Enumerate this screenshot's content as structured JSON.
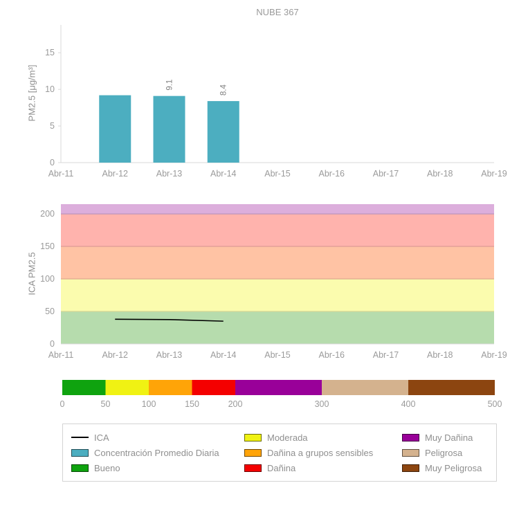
{
  "title": "NUBE 367",
  "chart_data": [
    {
      "type": "bar",
      "title": "NUBE 367",
      "xlabel": "",
      "ylabel": "PM2.5 [μg/m³]",
      "categories": [
        "Abr-11",
        "Abr-12",
        "Abr-13",
        "Abr-14",
        "Abr-15",
        "Abr-16",
        "Abr-17",
        "Abr-18",
        "Abr-19"
      ],
      "series": [
        {
          "name": "Concentración Promedio Diaria",
          "color": "#4caec0",
          "x": [
            "Abr-12",
            "Abr-13",
            "Abr-14"
          ],
          "values": [
            9.2,
            9.1,
            8.4
          ],
          "labels": [
            "",
            "9.1",
            "8.4"
          ]
        }
      ],
      "yticks": [
        0,
        5,
        10,
        15
      ],
      "ylim": [
        0,
        18.8
      ],
      "grid": false,
      "legend_position": "none"
    },
    {
      "type": "line",
      "xlabel": "",
      "ylabel": "ICA PM2.5",
      "categories": [
        "Abr-11",
        "Abr-12",
        "Abr-13",
        "Abr-14",
        "Abr-15",
        "Abr-16",
        "Abr-17",
        "Abr-18",
        "Abr-19"
      ],
      "series": [
        {
          "name": "ICA",
          "color": "#000000",
          "x": [
            "Abr-12",
            "Abr-13",
            "Abr-14"
          ],
          "values": [
            38,
            37.5,
            35
          ]
        }
      ],
      "yticks": [
        0,
        50,
        100,
        150,
        200
      ],
      "ylim": [
        0,
        215
      ],
      "bands": [
        {
          "from": 0,
          "to": 50,
          "color": "#b6dcad",
          "label": "Bueno"
        },
        {
          "from": 50,
          "to": 100,
          "color": "#fbfcae",
          "label": "Moderada"
        },
        {
          "from": 100,
          "to": 150,
          "color": "#ffc3a4",
          "label": "Dañina a grupos sensibles"
        },
        {
          "from": 150,
          "to": 200,
          "color": "#ffb3ad",
          "label": "Dañina"
        },
        {
          "from": 200,
          "to": 215,
          "color": "#dcaedc",
          "label": "Muy Dañina"
        }
      ],
      "grid": false,
      "legend_position": "bottom"
    },
    {
      "type": "colorbar",
      "xticks": [
        0,
        50,
        100,
        150,
        200,
        300,
        400,
        500
      ],
      "xlim": [
        0,
        500
      ],
      "segments": [
        {
          "from": 0,
          "to": 50,
          "color": "#0fa30f",
          "label": "Bueno"
        },
        {
          "from": 50,
          "to": 100,
          "color": "#f0f213",
          "label": "Moderada"
        },
        {
          "from": 100,
          "to": 150,
          "color": "#ffa408",
          "label": "Dañina a grupos sensibles"
        },
        {
          "from": 150,
          "to": 200,
          "color": "#f40000",
          "label": "Dañina"
        },
        {
          "from": 200,
          "to": 300,
          "color": "#990099",
          "label": "Muy Dañina"
        },
        {
          "from": 300,
          "to": 400,
          "color": "#d4b28e",
          "label": "Peligrosa"
        },
        {
          "from": 400,
          "to": 500,
          "color": "#8c4510",
          "label": "Muy Peligrosa"
        }
      ]
    }
  ],
  "legend": {
    "items": [
      {
        "label": "ICA",
        "type": "line",
        "color": "#000000"
      },
      {
        "label": "Concentración Promedio Diaria",
        "type": "box",
        "color": "#4caec0"
      },
      {
        "label": "Bueno",
        "type": "box",
        "color": "#0fa30f"
      },
      {
        "label": "Moderada",
        "type": "box",
        "color": "#f0f213"
      },
      {
        "label": "Dañina a grupos sensibles",
        "type": "box",
        "color": "#ffa408"
      },
      {
        "label": "Dañina",
        "type": "box",
        "color": "#f40000"
      },
      {
        "label": "Muy Dañina",
        "type": "box",
        "color": "#990099"
      },
      {
        "label": "Peligrosa",
        "type": "box",
        "color": "#d4b28e"
      },
      {
        "label": "Muy Peligrosa",
        "type": "box",
        "color": "#8c4510"
      }
    ]
  }
}
